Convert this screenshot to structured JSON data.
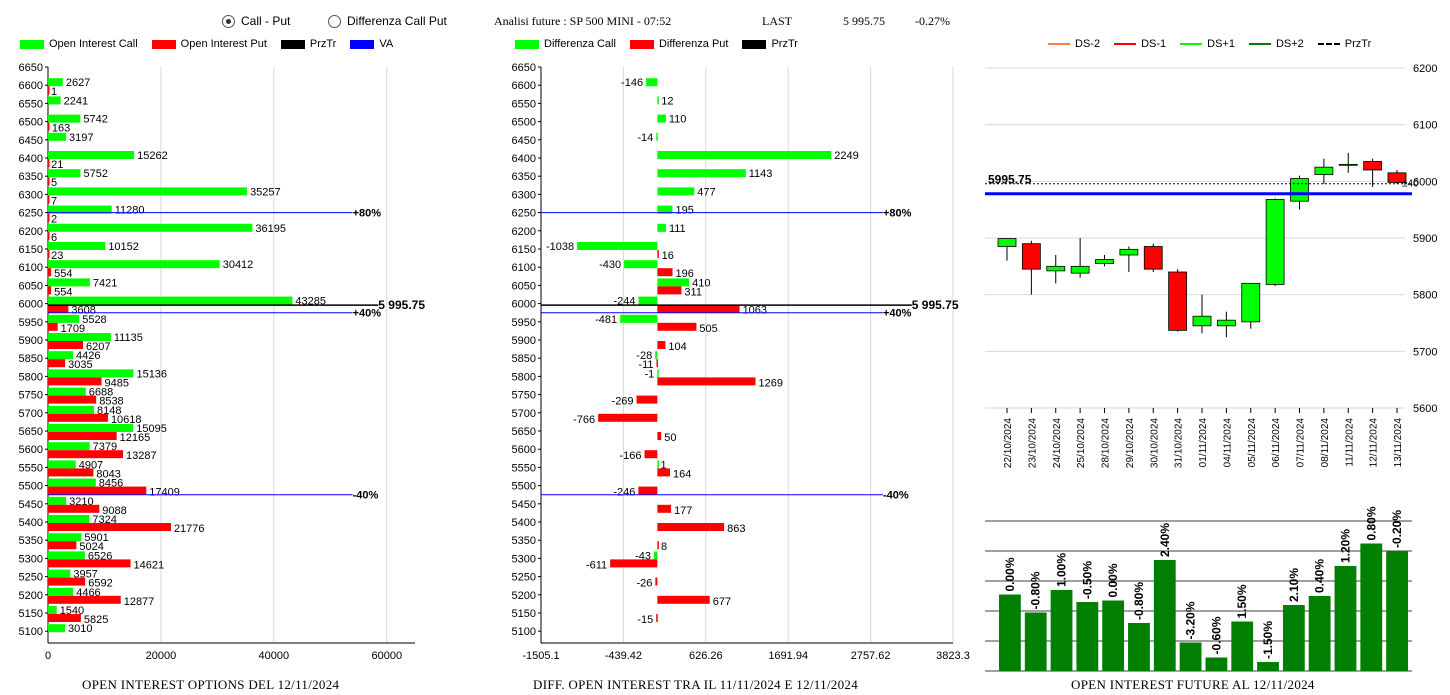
{
  "header": {
    "radio_call_put": "Call - Put",
    "radio_diff": "Differenza Call Put",
    "info": "Analisi future : SP 500 MINI - 07:52",
    "last_label": "LAST",
    "last_value": "5 995.75",
    "last_change": "-0.27%"
  },
  "legend1": {
    "call": "Open Interest Call",
    "put": "Open Interest Put",
    "prztr": "PrzTr",
    "va": "VA"
  },
  "legend2": {
    "call": "Differenza Call",
    "put": "Differenza Put",
    "prztr": "PrzTr"
  },
  "legend3": {
    "ds_m2": "DS-2",
    "ds_m1": "DS-1",
    "ds_p1": "DS+1",
    "ds_p2": "DS+2",
    "prztr": "PrzTr"
  },
  "titles": {
    "oi": "OPEN INTEREST OPTIONS DEL 12/11/2024",
    "diff": "DIFF. OPEN INTEREST TRA IL 11/11/2024 E 12/11/2024",
    "fut": "OPEN INTEREST FUTURE AL 12/11/2024"
  },
  "colors": {
    "call": "#00ff00",
    "put": "#ff0000",
    "va": "#0000ff",
    "candle_up": "#00ff00",
    "candle_down": "#ff0000",
    "oi_bar": "#007f00",
    "ds_m2": "#ff8040",
    "ds_m1": "#ff0000",
    "ds_p1": "#00ff00",
    "ds_p2": "#008000"
  },
  "chart_data": [
    {
      "type": "bar",
      "orientation": "horizontal",
      "categories": [
        6650,
        6600,
        6550,
        6500,
        6450,
        6400,
        6350,
        6300,
        6250,
        6200,
        6150,
        6100,
        6050,
        6000,
        5950,
        5900,
        5850,
        5800,
        5750,
        5700,
        5650,
        5600,
        5550,
        5500,
        5450,
        5400,
        5350,
        5300,
        5250,
        5200,
        5150,
        5100
      ],
      "series": [
        {
          "name": "Open Interest Call",
          "values": [
            null,
            2627,
            2241,
            5742,
            3197,
            15262,
            5752,
            35257,
            11280,
            36195,
            10152,
            30412,
            7421,
            43285,
            5528,
            11135,
            4426,
            15136,
            6688,
            8148,
            15095,
            7379,
            4907,
            8456,
            3210,
            7324,
            5901,
            6526,
            3957,
            4466,
            1540,
            3010
          ]
        },
        {
          "name": "Open Interest Put",
          "values": [
            null,
            1,
            null,
            163,
            null,
            21,
            5,
            7,
            2,
            6,
            23,
            554,
            554,
            3608,
            1709,
            6207,
            3035,
            9485,
            8538,
            10618,
            12165,
            13287,
            8043,
            17409,
            9088,
            21776,
            5024,
            14621,
            6592,
            12877,
            5825,
            null
          ]
        }
      ],
      "xticks": [
        "0",
        "20000",
        "40000",
        "60000"
      ],
      "xlim": [
        0,
        65000
      ],
      "prztr": {
        "value": "5 995.75",
        "level": 5995.75
      },
      "va_lines": [
        {
          "level": 6250,
          "label": "+80%"
        },
        {
          "level": 5975,
          "label": "+40%"
        },
        {
          "level": 5475,
          "label": "-40%"
        }
      ]
    },
    {
      "type": "bar",
      "orientation": "horizontal",
      "categories": [
        6650,
        6600,
        6550,
        6500,
        6450,
        6400,
        6350,
        6300,
        6250,
        6200,
        6150,
        6100,
        6050,
        6000,
        5950,
        5900,
        5850,
        5800,
        5750,
        5700,
        5650,
        5600,
        5550,
        5500,
        5450,
        5400,
        5350,
        5300,
        5250,
        5200,
        5150,
        5100
      ],
      "series": [
        {
          "name": "Differenza Call",
          "values": [
            null,
            -146,
            12,
            110,
            -14,
            2249,
            1143,
            477,
            195,
            111,
            -1038,
            -430,
            410,
            -244,
            -481,
            null,
            -28,
            -1,
            null,
            null,
            null,
            null,
            1,
            null,
            null,
            null,
            null,
            -43,
            null,
            null,
            null,
            null
          ]
        },
        {
          "name": "Differenza Put",
          "values": [
            null,
            null,
            null,
            null,
            null,
            null,
            null,
            null,
            null,
            null,
            16,
            196,
            311,
            1063,
            505,
            104,
            -11,
            1269,
            -269,
            -766,
            50,
            -166,
            164,
            -246,
            177,
            863,
            8,
            -611,
            -26,
            677,
            -15,
            null
          ]
        }
      ],
      "xticks": [
        "-1505.1",
        "-439.42",
        "626.26",
        "1691.94",
        "2757.62",
        "3823.3"
      ],
      "xlim": [
        -1505.1,
        3823.3
      ],
      "prztr": {
        "value": "5 995.75",
        "level": 5995.75
      },
      "va_lines": [
        {
          "level": 6250,
          "label": "+80%"
        },
        {
          "level": 5975,
          "label": "+40%"
        },
        {
          "level": 5475,
          "label": "-40%"
        }
      ]
    },
    {
      "type": "candlestick",
      "categories": [
        "22/10/2024",
        "23/10/2024",
        "24/10/2024",
        "25/10/2024",
        "28/10/2024",
        "29/10/2024",
        "30/10/2024",
        "31/10/2024",
        "01/11/2024",
        "04/11/2024",
        "05/11/2024",
        "06/11/2024",
        "07/11/2024",
        "08/11/2024",
        "11/11/2024",
        "12/11/2024",
        "13/11/2024"
      ],
      "ohlc": [
        [
          5885,
          5900,
          5860,
          5899
        ],
        [
          5890,
          5895,
          5800,
          5845
        ],
        [
          5842,
          5870,
          5820,
          5850
        ],
        [
          5838,
          5900,
          5830,
          5850
        ],
        [
          5855,
          5870,
          5850,
          5862
        ],
        [
          5870,
          5885,
          5840,
          5880
        ],
        [
          5885,
          5890,
          5840,
          5845
        ],
        [
          5840,
          5845,
          5735,
          5737
        ],
        [
          5745,
          5800,
          5732,
          5762
        ],
        [
          5745,
          5770,
          5725,
          5755
        ],
        [
          5752,
          5820,
          5740,
          5820
        ],
        [
          5818,
          5970,
          5815,
          5968
        ],
        [
          5965,
          6010,
          5950,
          6005
        ],
        [
          6012,
          6040,
          5995,
          6025
        ],
        [
          6030,
          6050,
          6015,
          6030
        ],
        [
          6035,
          6040,
          5990,
          6020
        ],
        [
          6015,
          6020,
          5995,
          5998
        ]
      ],
      "ylim": [
        5600,
        6200
      ],
      "yticks": [
        "5600",
        "5700",
        "5800",
        "5900",
        "6000",
        "6100",
        "6200"
      ],
      "prztr": {
        "value": "5995.75",
        "level": 5995.75
      },
      "va_level": 5978,
      "right_label": "±40"
    },
    {
      "type": "bar",
      "categories": [
        "22/10/2024",
        "23/10/2024",
        "24/10/2024",
        "25/10/2024",
        "28/10/2024",
        "29/10/2024",
        "30/10/2024",
        "31/10/2024",
        "01/11/2024",
        "04/11/2024",
        "05/11/2024",
        "06/11/2024",
        "07/11/2024",
        "08/11/2024",
        "11/11/2024",
        "12/11/2024"
      ],
      "values": [
        0.0,
        -0.8,
        1.0,
        -0.5,
        0.0,
        -0.8,
        2.4,
        -3.2,
        -0.6,
        1.5,
        -1.5,
        2.1,
        0.4,
        1.2,
        0.8,
        -0.2
      ],
      "labels": [
        "0.00%",
        "-0.80%",
        "1.00%",
        "-0.50%",
        "0.00%",
        "-0.80%",
        "2.40%",
        "-3.20%",
        "-0.60%",
        "1.50%",
        "-1.50%",
        "2.10%",
        "0.40%",
        "1.20%",
        "0.80%",
        "-0.20%"
      ],
      "heights": [
        0.51,
        0.39,
        0.54,
        0.46,
        0.47,
        0.32,
        0.74,
        0.19,
        0.09,
        0.33,
        0.06,
        0.44,
        0.5,
        0.7,
        0.85,
        0.8
      ]
    }
  ]
}
